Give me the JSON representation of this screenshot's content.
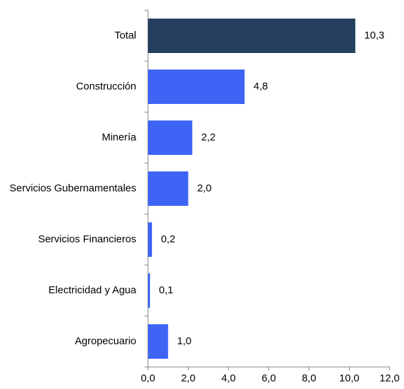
{
  "chart_data": {
    "type": "bar",
    "orientation": "horizontal",
    "categories": [
      "Total",
      "Construcción",
      "Minería",
      "Servicios Gubernamentales",
      "Servicios Financieros",
      "Electricidad y Agua",
      "Agropecuario"
    ],
    "values": [
      10.3,
      4.8,
      2.2,
      2.0,
      0.2,
      0.1,
      1.0
    ],
    "value_labels": [
      "10,3",
      "4,8",
      "2,2",
      "2,0",
      "0,2",
      "0,1",
      "1,0"
    ],
    "colors": [
      "#243f60",
      "#3d64f5",
      "#3d64f5",
      "#3d64f5",
      "#3d64f5",
      "#3d64f5",
      "#3d64f5"
    ],
    "xlim": [
      0,
      12
    ],
    "xticks": [
      {
        "value": 0,
        "label": "0,0"
      },
      {
        "value": 2,
        "label": "2,0"
      },
      {
        "value": 4,
        "label": "4,0"
      },
      {
        "value": 6,
        "label": "6,0"
      },
      {
        "value": 8,
        "label": "8,0"
      },
      {
        "value": 10,
        "label": "10,0"
      },
      {
        "value": 12,
        "label": "12,0"
      }
    ],
    "grid": false
  }
}
